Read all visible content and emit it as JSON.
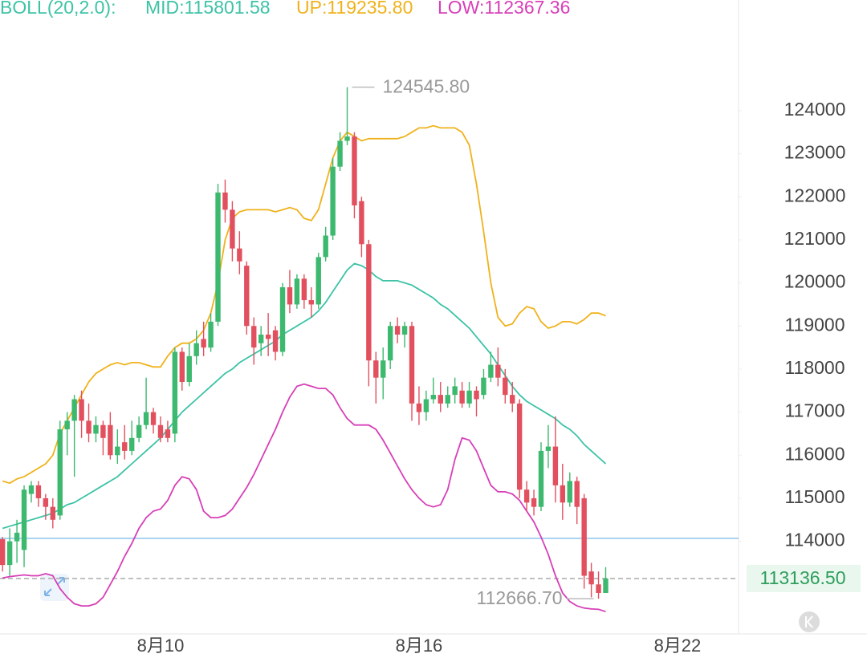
{
  "chart_data": {
    "type": "candlestick",
    "indicator": [
      "BOLL(20,2.0):",
      "MID:115801.58",
      "UP:119235.80",
      "LOW:112367.36"
    ],
    "indicator_color": "#3cc3a6",
    "up_color": "#3cb96e",
    "down_color": "#e2505f",
    "categories": [
      null,
      null,
      null,
      null,
      null,
      null,
      null,
      null,
      null,
      null,
      null,
      null,
      null,
      null,
      null,
      null,
      null,
      null,
      null,
      null,
      null,
      null,
      "8月10",
      null,
      null,
      null,
      null,
      null,
      null,
      null,
      null,
      null,
      null,
      null,
      null,
      null,
      null,
      null,
      null,
      null,
      null,
      null,
      null,
      null,
      null,
      null,
      null,
      null,
      null,
      null,
      null,
      null,
      null,
      null,
      null,
      null,
      null,
      null,
      "8月16",
      null,
      null,
      null,
      null,
      null,
      null,
      null,
      null,
      null,
      null,
      null,
      null,
      null,
      null,
      null,
      null,
      null,
      null,
      null,
      null,
      null,
      null,
      null,
      null,
      null,
      null,
      null,
      null,
      null,
      null,
      null,
      null,
      null,
      null,
      null,
      "8月22"
    ],
    "open": [
      114050,
      113450,
      114000,
      113800,
      115100,
      115300,
      115000,
      114800,
      114600,
      116600,
      116800,
      117300,
      116800,
      116500,
      116700,
      116700,
      116000,
      116300,
      116100,
      116400,
      116700,
      117000,
      116700,
      116600,
      116500,
      118400,
      117700,
      118300,
      118700,
      118500,
      119100,
      122100,
      121700,
      120800,
      120400,
      119000,
      118600,
      118800,
      118900,
      118400,
      119900,
      119500,
      120100,
      119600,
      119500,
      120600,
      121100,
      122700,
      123300,
      123400,
      121900,
      120900,
      118200,
      117800,
      118200,
      119000,
      118800,
      119000,
      117200,
      117000,
      117300,
      117400,
      117200,
      117400,
      117500,
      117200,
      117500,
      117400,
      117800,
      118100,
      117800,
      117400,
      117200,
      115200,
      115000,
      114800,
      116100,
      116200,
      115300,
      114900,
      115400,
      115000,
      113300,
      113000,
      112800,
      null,
      null,
      null,
      null,
      null,
      null,
      null,
      null,
      null,
      null
    ],
    "high": [
      114100,
      114300,
      114500,
      115300,
      115400,
      115400,
      115100,
      115000,
      116800,
      117000,
      117400,
      117500,
      117200,
      116900,
      116800,
      117000,
      116600,
      116700,
      116800,
      116900,
      117800,
      117100,
      116900,
      116800,
      118500,
      118500,
      118600,
      118900,
      119100,
      119300,
      122300,
      122400,
      121900,
      121200,
      120500,
      119200,
      119000,
      119300,
      119000,
      120000,
      120300,
      120200,
      120200,
      119900,
      120700,
      121300,
      122900,
      123500,
      124545.8,
      123500,
      122000,
      121000,
      118400,
      118500,
      119100,
      119200,
      119100,
      119100,
      117600,
      117500,
      117800,
      117700,
      117600,
      117800,
      117700,
      117700,
      117600,
      118000,
      118400,
      118500,
      118000,
      117700,
      117300,
      115400,
      115200,
      116300,
      116700,
      116900,
      115800,
      115600,
      115500,
      115100,
      113500,
      113300,
      113400,
      null,
      null,
      null,
      null,
      null,
      null,
      null,
      null,
      null,
      null
    ],
    "low": [
      113300,
      113200,
      113500,
      113400,
      114900,
      114800,
      114500,
      114300,
      114500,
      116000,
      115500,
      116400,
      116300,
      116300,
      116000,
      115900,
      115800,
      115900,
      116000,
      116300,
      116600,
      116500,
      116300,
      116300,
      116300,
      117500,
      117600,
      118100,
      118300,
      118400,
      119000,
      121400,
      120500,
      120200,
      118800,
      118100,
      118300,
      118300,
      118200,
      118300,
      119300,
      119400,
      119400,
      119200,
      119400,
      120500,
      121000,
      122600,
      123200,
      121500,
      120600,
      117600,
      117200,
      117300,
      118000,
      118600,
      118500,
      116800,
      116700,
      116800,
      117200,
      117000,
      117100,
      117200,
      117100,
      117100,
      116900,
      117300,
      117700,
      117600,
      117200,
      117000,
      115000,
      114700,
      114600,
      114700,
      115700,
      114900,
      114500,
      114800,
      114400,
      112900,
      112700,
      112666.7,
      112800,
      null,
      null,
      null,
      null,
      null,
      null,
      null,
      null,
      null,
      null
    ],
    "close": [
      113450,
      114000,
      114200,
      115200,
      115300,
      115000,
      114800,
      114500,
      116600,
      116800,
      117300,
      116800,
      116500,
      116700,
      116400,
      116000,
      116200,
      116100,
      116400,
      116700,
      117000,
      116700,
      116400,
      116400,
      118400,
      117700,
      118300,
      118600,
      118500,
      119100,
      122100,
      121700,
      120800,
      120500,
      119000,
      118500,
      118800,
      118700,
      118400,
      119900,
      119500,
      120100,
      119600,
      119500,
      120600,
      121100,
      122700,
      123300,
      123400,
      121800,
      120900,
      118200,
      117800,
      118200,
      119000,
      118800,
      119000,
      117200,
      117000,
      117300,
      117400,
      117200,
      117400,
      117600,
      117200,
      117500,
      117300,
      117800,
      118100,
      117800,
      117400,
      117200,
      115200,
      114900,
      114800,
      116100,
      116200,
      115300,
      114900,
      115400,
      114800,
      113200,
      113000,
      112800,
      113136.5,
      null,
      null,
      null,
      null,
      null,
      null,
      null,
      null,
      null,
      null
    ],
    "series": [
      {
        "name": "MID",
        "color": "#3cc3a6",
        "values": [
          114300,
          114350,
          114400,
          114450,
          114500,
          114550,
          114600,
          114650,
          114750,
          114850,
          114900,
          115000,
          115100,
          115200,
          115300,
          115400,
          115500,
          115650,
          115800,
          115950,
          116100,
          116250,
          116400,
          116600,
          116800,
          117000,
          117150,
          117300,
          117450,
          117600,
          117750,
          117900,
          118000,
          118150,
          118250,
          118350,
          118450,
          118550,
          118650,
          118800,
          118900,
          119000,
          119100,
          119200,
          119350,
          119550,
          119800,
          120050,
          120300,
          120450,
          120400,
          120300,
          120150,
          120050,
          120050,
          120050,
          120000,
          119950,
          119850,
          119750,
          119650,
          119500,
          119400,
          119250,
          119100,
          118950,
          118750,
          118550,
          118350,
          118100,
          117850,
          117600,
          117400,
          117250,
          117150,
          117050,
          116950,
          116850,
          116700,
          116600,
          116450,
          116250,
          116100,
          115950,
          115801.58,
          null,
          null,
          null,
          null,
          null,
          null,
          null,
          null,
          null,
          null
        ]
      },
      {
        "name": "UP",
        "color": "#f0b21c",
        "values": [
          115400,
          115350,
          115450,
          115500,
          115600,
          115700,
          115800,
          116000,
          116500,
          116800,
          117100,
          117400,
          117700,
          117900,
          118000,
          118100,
          118150,
          118100,
          118150,
          118150,
          118100,
          118050,
          118050,
          118300,
          118500,
          118600,
          118600,
          118700,
          118900,
          119300,
          120000,
          121000,
          121500,
          121650,
          121700,
          121700,
          121700,
          121700,
          121650,
          121700,
          121750,
          121700,
          121500,
          121450,
          121700,
          122300,
          122900,
          123300,
          123500,
          123400,
          123300,
          123350,
          123350,
          123350,
          123350,
          123350,
          123400,
          123500,
          123600,
          123600,
          123650,
          123600,
          123600,
          123600,
          123500,
          123200,
          122300,
          121200,
          120000,
          119200,
          119000,
          119050,
          119300,
          119450,
          119400,
          119100,
          118950,
          119000,
          119100,
          119100,
          119050,
          119150,
          119300,
          119300,
          119235.8,
          null,
          null,
          null,
          null,
          null,
          null,
          null,
          null,
          null,
          null
        ]
      },
      {
        "name": "LOW",
        "color": "#d73fb7",
        "values": [
          113150,
          113180,
          113200,
          113220,
          113200,
          113200,
          113250,
          113200,
          112900,
          112700,
          112550,
          112500,
          112500,
          112550,
          112700,
          113000,
          113300,
          113650,
          113950,
          114300,
          114550,
          114700,
          114750,
          114950,
          115300,
          115500,
          115450,
          115200,
          114700,
          114550,
          114550,
          114600,
          114750,
          115000,
          115250,
          115550,
          115900,
          116250,
          116600,
          117000,
          117350,
          117600,
          117650,
          117600,
          117550,
          117550,
          117400,
          117100,
          116850,
          116700,
          116700,
          116700,
          116600,
          116350,
          116050,
          115750,
          115450,
          115200,
          115000,
          114850,
          114800,
          114850,
          115200,
          115900,
          116400,
          116350,
          116100,
          115700,
          115300,
          115150,
          115150,
          115100,
          114950,
          114700,
          114450,
          114100,
          113700,
          113200,
          112800,
          112600,
          112500,
          112450,
          112430,
          112420,
          112367.36,
          null,
          null,
          null,
          null,
          null,
          null,
          null,
          null,
          null,
          null
        ]
      }
    ],
    "high_marker": {
      "value": 124545.8,
      "label": "124545.80"
    },
    "low_marker": {
      "value": 112666.7,
      "label": "112666.70"
    },
    "current_price": {
      "value": 113136.5,
      "label": "113136.50"
    },
    "price_line": {
      "value": 114070,
      "color": "#8ec5ee"
    },
    "ylim": [
      111850,
      126570
    ],
    "yticks": [
      114000,
      115000,
      116000,
      117000,
      118000,
      119000,
      120000,
      121000,
      122000,
      123000,
      124000
    ]
  }
}
